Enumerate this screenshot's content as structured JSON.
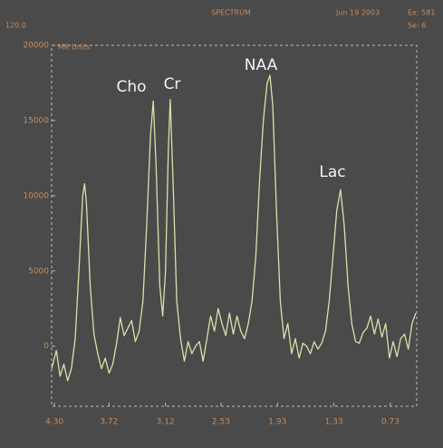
{
  "screen": {
    "corner": "120.0",
    "date": "Jun 19 2003",
    "ex": "Ex: 581",
    "se": "Se: 6"
  },
  "chart_data": {
    "type": "line",
    "title": "SPECTRUM",
    "y_label": "MR Units",
    "x": [
      4.33,
      4.28,
      4.24,
      4.2,
      4.16,
      4.12,
      4.08,
      4.04,
      4.0,
      3.98,
      3.96,
      3.92,
      3.88,
      3.84,
      3.8,
      3.76,
      3.72,
      3.68,
      3.64,
      3.6,
      3.56,
      3.52,
      3.48,
      3.44,
      3.4,
      3.36,
      3.32,
      3.28,
      3.25,
      3.22,
      3.18,
      3.15,
      3.12,
      3.09,
      3.07,
      3.04,
      3.0,
      2.96,
      2.92,
      2.88,
      2.84,
      2.8,
      2.76,
      2.72,
      2.68,
      2.64,
      2.6,
      2.56,
      2.52,
      2.48,
      2.44,
      2.4,
      2.36,
      2.32,
      2.28,
      2.24,
      2.2,
      2.16,
      2.12,
      2.08,
      2.04,
      2.01,
      1.98,
      1.94,
      1.9,
      1.86,
      1.82,
      1.78,
      1.74,
      1.7,
      1.66,
      1.62,
      1.58,
      1.54,
      1.5,
      1.46,
      1.42,
      1.38,
      1.34,
      1.3,
      1.26,
      1.22,
      1.18,
      1.14,
      1.1,
      1.06,
      1.02,
      0.98,
      0.94,
      0.9,
      0.86,
      0.82,
      0.78,
      0.74,
      0.7,
      0.66,
      0.62,
      0.58,
      0.54,
      0.5,
      0.46
    ],
    "series": [
      {
        "color": "#d4e4a8",
        "values": [
          -1500,
          -300,
          -2000,
          -1200,
          -2300,
          -1500,
          500,
          5000,
          10000,
          10800,
          9500,
          4000,
          800,
          -500,
          -1500,
          -800,
          -1800,
          -1200,
          200,
          1900,
          700,
          1200,
          1700,
          300,
          1000,
          3000,
          8000,
          14000,
          16300,
          12000,
          4000,
          2000,
          5000,
          13000,
          16400,
          11000,
          3000,
          500,
          -1000,
          300,
          -500,
          0,
          300,
          -1000,
          500,
          2000,
          1000,
          2500,
          1500,
          700,
          2200,
          800,
          2000,
          1000,
          500,
          1500,
          3000,
          6000,
          11000,
          15000,
          17500,
          18000,
          16000,
          9000,
          3000,
          500,
          1500,
          -500,
          500,
          -800,
          200,
          0,
          -500,
          300,
          -200,
          200,
          1000,
          3000,
          6000,
          9000,
          10400,
          8000,
          4000,
          1500,
          300,
          200,
          900,
          1200,
          2000,
          800,
          1800,
          600,
          1500,
          -800,
          300,
          -700,
          500,
          800,
          -200,
          1500,
          2200
        ]
      }
    ],
    "xlim": [
      4.33,
      0.45
    ],
    "xticks": [
      {
        "value": 4.3,
        "label": "4.30"
      },
      3.72,
      3.12,
      2.53,
      1.93,
      1.33,
      0.73
    ],
    "ylim": [
      -4000,
      20000
    ],
    "yticks": [
      0,
      5000,
      10000,
      15000,
      20000
    ],
    "grid": false,
    "annotations": [
      "Cho",
      "Cr",
      "NAA",
      "Lac"
    ]
  }
}
